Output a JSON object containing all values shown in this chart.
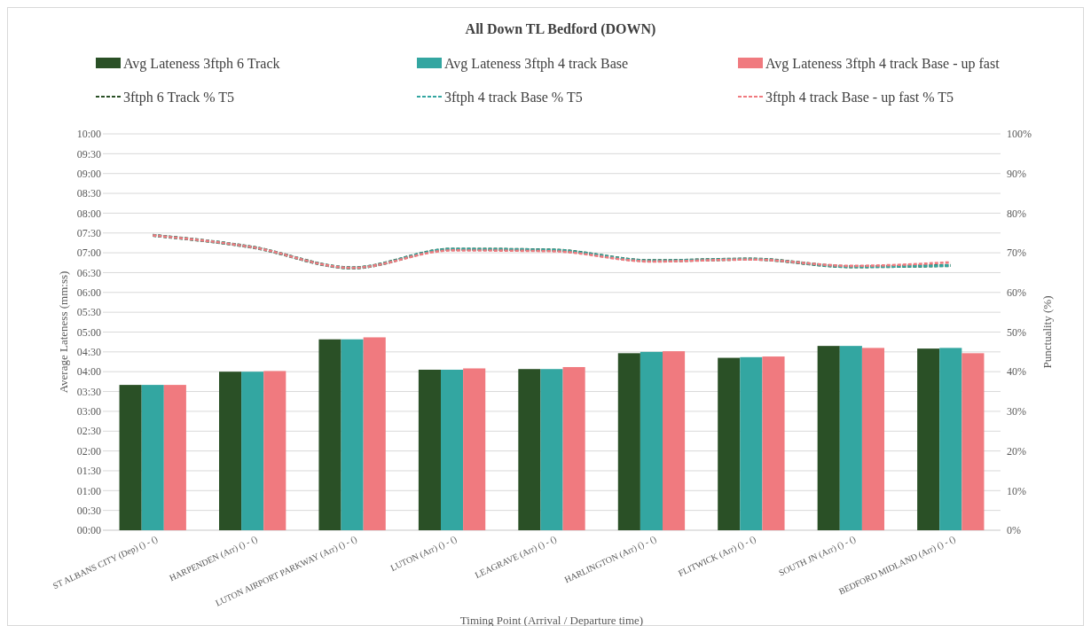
{
  "chart_data": {
    "type": "bar",
    "title": "All Down TL Bedford (DOWN)",
    "xlabel": "Timing Point  (Arrival / Departure time)",
    "ylabel": "Average Lateness (mm:ss)",
    "y2label": "Punctuality (%)",
    "categories": [
      "ST ALBANS CITY (Dep) () - ()",
      "HARPENDEN (Arr) () - ()",
      "LUTON AIRPORT PARKWAY (Arr) () - ()",
      "LUTON (Arr) () - ()",
      "LEAGRAVE (Arr) () - ()",
      "HARLINGTON (Arr) () - ()",
      "FLITWICK (Arr) () - ()",
      "SOUTH JN (Arr) () - ()",
      "BEDFORD MIDLAND (Arr) () - ()"
    ],
    "series": [
      {
        "name": "Avg Lateness 3ftph 6 Track",
        "color": "#2a5026",
        "values": [
          220,
          240,
          289,
          243,
          244,
          268,
          261,
          279,
          275
        ]
      },
      {
        "name": "Avg Lateness 3ftph 4 track Base",
        "color": "#33a6a1",
        "values": [
          220,
          240,
          289,
          243,
          244,
          270,
          262,
          279,
          276
        ]
      },
      {
        "name": "Avg Lateness 3ftph 4 track Base - up fast",
        "color": "#f07a7f",
        "values": [
          220,
          241,
          292,
          245,
          247,
          271,
          263,
          276,
          268
        ]
      },
      {
        "name": "3ftph 6 Track % T5",
        "type": "line",
        "axis": "y2",
        "color": "#2a5026",
        "line_style": "dashed",
        "values": [
          74.4,
          71.4,
          66.2,
          70.9,
          70.7,
          68.0,
          68.4,
          66.5,
          66.8
        ]
      },
      {
        "name": "3ftph 4 track Base % T5",
        "type": "line",
        "axis": "y2",
        "color": "#33a6a1",
        "line_style": "dashed",
        "values": [
          74.4,
          71.4,
          66.2,
          70.9,
          70.7,
          68.0,
          68.4,
          66.5,
          66.8
        ]
      },
      {
        "name": "3ftph 4 track Base - up fast % T5",
        "type": "line",
        "axis": "y2",
        "color": "#f07a7f",
        "line_style": "dashed",
        "values": [
          74.4,
          71.4,
          66.2,
          70.6,
          70.4,
          67.8,
          68.3,
          66.7,
          67.6
        ]
      }
    ],
    "ylim": [
      0,
      600
    ],
    "yticks": [
      {
        "value": 0,
        "label": "00:00"
      },
      {
        "value": 30,
        "label": "00:30"
      },
      {
        "value": 60,
        "label": "01:00"
      },
      {
        "value": 90,
        "label": "01:30"
      },
      {
        "value": 120,
        "label": "02:00"
      },
      {
        "value": 150,
        "label": "02:30"
      },
      {
        "value": 180,
        "label": "03:00"
      },
      {
        "value": 210,
        "label": "03:30"
      },
      {
        "value": 240,
        "label": "04:00"
      },
      {
        "value": 270,
        "label": "04:30"
      },
      {
        "value": 300,
        "label": "05:00"
      },
      {
        "value": 330,
        "label": "05:30"
      },
      {
        "value": 360,
        "label": "06:00"
      },
      {
        "value": 390,
        "label": "06:30"
      },
      {
        "value": 420,
        "label": "07:00"
      },
      {
        "value": 450,
        "label": "07:30"
      },
      {
        "value": 480,
        "label": "08:00"
      },
      {
        "value": 510,
        "label": "08:30"
      },
      {
        "value": 540,
        "label": "09:00"
      },
      {
        "value": 570,
        "label": "09:30"
      },
      {
        "value": 600,
        "label": "10:00"
      }
    ],
    "y2lim": [
      0,
      100
    ],
    "y2ticks": [
      {
        "value": 0,
        "label": "0%"
      },
      {
        "value": 10,
        "label": "10%"
      },
      {
        "value": 20,
        "label": "20%"
      },
      {
        "value": 30,
        "label": "30%"
      },
      {
        "value": 40,
        "label": "40%"
      },
      {
        "value": 50,
        "label": "50%"
      },
      {
        "value": 60,
        "label": "60%"
      },
      {
        "value": 70,
        "label": "70%"
      },
      {
        "value": 80,
        "label": "80%"
      },
      {
        "value": 90,
        "label": "90%"
      },
      {
        "value": 100,
        "label": "100%"
      }
    ],
    "grid": "y",
    "legend": "top"
  }
}
